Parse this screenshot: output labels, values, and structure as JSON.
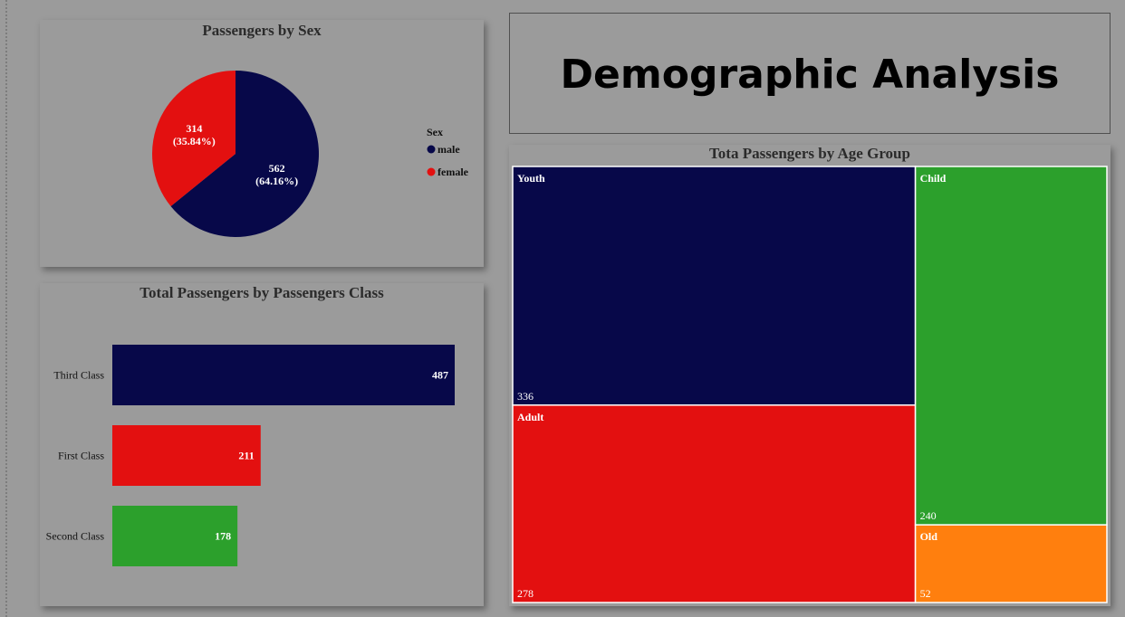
{
  "page_title": "Demographic Analysis",
  "colors": {
    "navy": "#070849",
    "red": "#e31010",
    "green": "#2ca02c",
    "orange": "#ff7f0e",
    "background": "#9b9b9b"
  },
  "chart_data": [
    {
      "type": "pie",
      "title": "Passengers by Sex",
      "legend_title": "Sex",
      "legend_position": "right",
      "slices": [
        {
          "label": "male",
          "value": 562,
          "percent_label": "(64.16%)",
          "color": "#070849"
        },
        {
          "label": "female",
          "value": 314,
          "percent_label": "(35.84%)",
          "color": "#e31010"
        }
      ]
    },
    {
      "type": "bar",
      "orientation": "horizontal",
      "title": "Total Passengers by Passengers Class",
      "categories": [
        "Third Class",
        "First Class",
        "Second Class"
      ],
      "values": [
        487,
        211,
        178
      ],
      "colors": [
        "#070849",
        "#e31010",
        "#2ca02c"
      ],
      "xlim": [
        0,
        487
      ]
    },
    {
      "type": "treemap",
      "title": "Tota Passengers by Age Group",
      "items": [
        {
          "label": "Youth",
          "value": 336,
          "color": "#070849"
        },
        {
          "label": "Adult",
          "value": 278,
          "color": "#e31010"
        },
        {
          "label": "Child",
          "value": 240,
          "color": "#2ca02c"
        },
        {
          "label": "Old",
          "value": 52,
          "color": "#ff7f0e"
        }
      ]
    }
  ]
}
